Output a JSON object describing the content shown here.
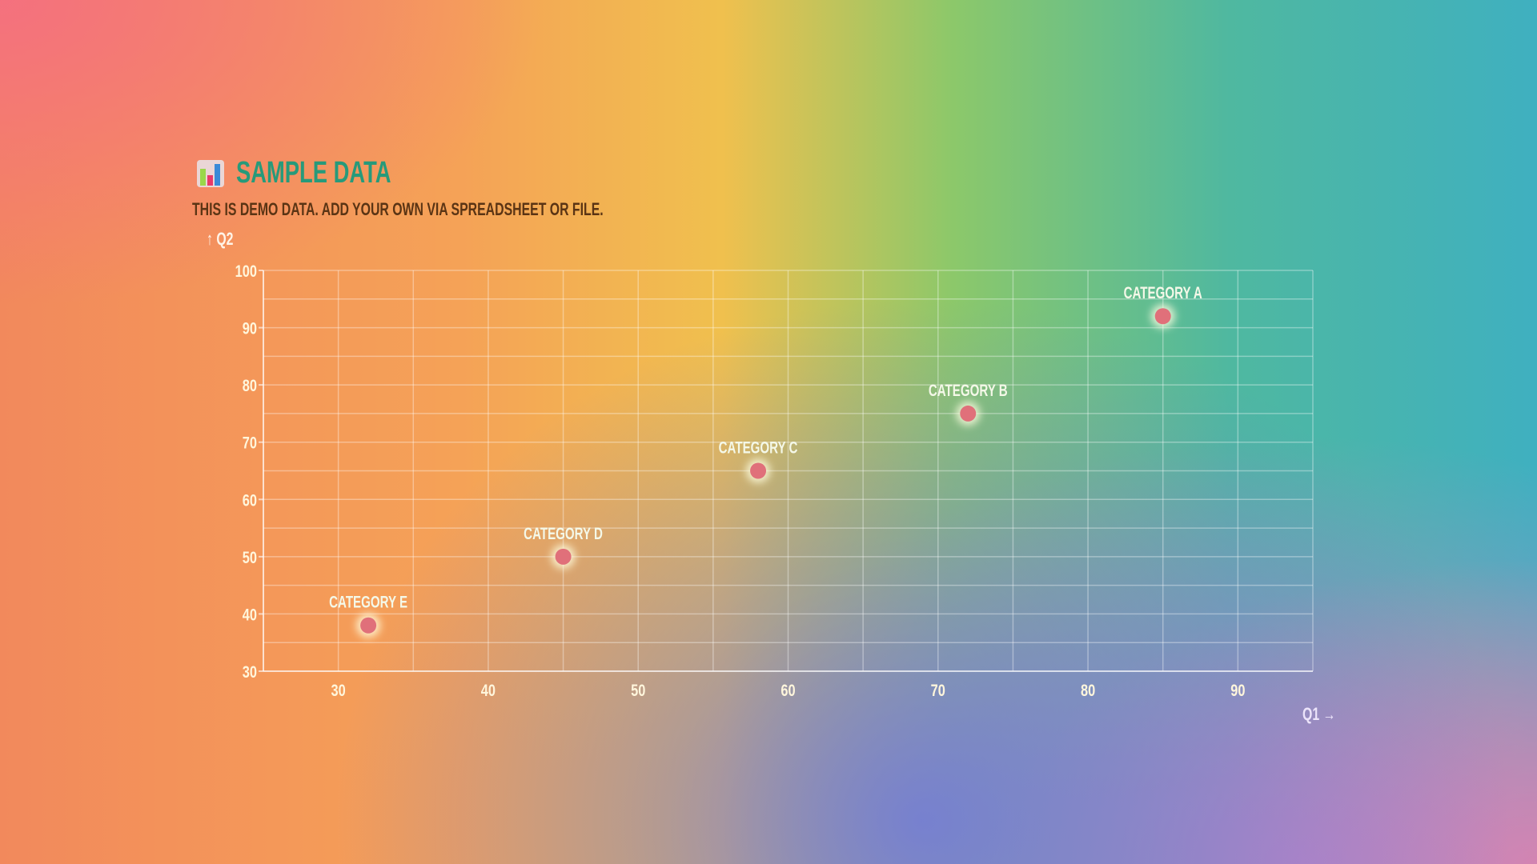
{
  "chart_data": {
    "type": "scatter",
    "title": "Sample Data",
    "subtitle": "This is demo data. Add your own via spreadsheet or file.",
    "xlabel": "Q1 →",
    "ylabel": "↑ Q2",
    "xlim": [
      25,
      95
    ],
    "ylim": [
      30,
      100
    ],
    "xticks": [
      30,
      40,
      50,
      60,
      70,
      80,
      90
    ],
    "yticks": [
      30,
      40,
      50,
      60,
      70,
      80,
      90,
      100
    ],
    "grid": true,
    "points": [
      {
        "label": "Category A",
        "x": 85,
        "y": 92
      },
      {
        "label": "Category B",
        "x": 72,
        "y": 75
      },
      {
        "label": "Category C",
        "x": 58,
        "y": 65
      },
      {
        "label": "Category D",
        "x": 45,
        "y": 50
      },
      {
        "label": "Category E",
        "x": 32,
        "y": 38
      }
    ],
    "colors": {
      "point": "#e0707a",
      "title": "#279a7a"
    }
  },
  "icons": {
    "title_icon": "bar-chart-icon"
  }
}
